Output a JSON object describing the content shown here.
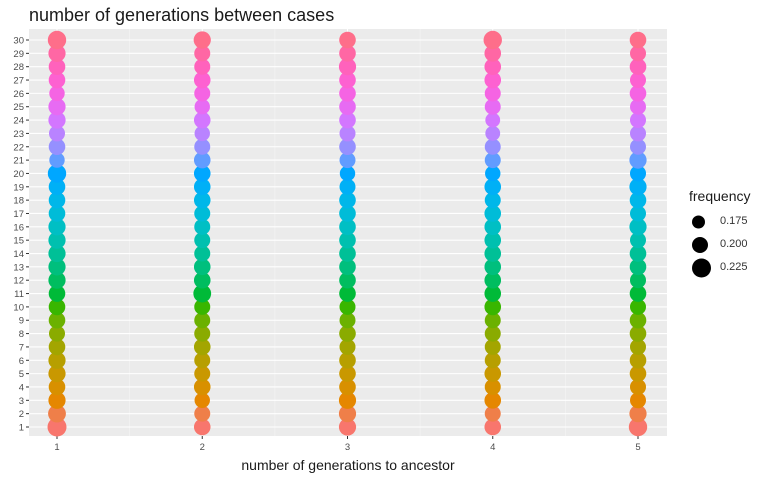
{
  "chart_data": {
    "type": "scatter",
    "title": "number of generations between cases",
    "xlabel": "number of generations to ancestor",
    "ylabel": "",
    "x_categories": [
      "1",
      "2",
      "3",
      "4",
      "5"
    ],
    "y_categories": [
      "1",
      "2",
      "3",
      "4",
      "5",
      "6",
      "7",
      "8",
      "9",
      "10",
      "11",
      "12",
      "13",
      "14",
      "15",
      "16",
      "17",
      "18",
      "19",
      "20",
      "21",
      "22",
      "23",
      "24",
      "25",
      "26",
      "27",
      "28",
      "29",
      "30"
    ],
    "color_by": "y",
    "size_variable": "frequency",
    "legend": {
      "title": "frequency",
      "placement": "right",
      "entries": [
        {
          "label": "0.175",
          "value": 0.175
        },
        {
          "label": "0.200",
          "value": 0.2
        },
        {
          "label": "0.225",
          "value": 0.225
        }
      ]
    },
    "frequency": [
      [
        0.225,
        0.205,
        0.21,
        0.205,
        0.22
      ],
      [
        0.215,
        0.2,
        0.21,
        0.2,
        0.21
      ],
      [
        0.21,
        0.195,
        0.21,
        0.205,
        0.2
      ],
      [
        0.205,
        0.205,
        0.205,
        0.2,
        0.2
      ],
      [
        0.21,
        0.2,
        0.205,
        0.205,
        0.205
      ],
      [
        0.21,
        0.2,
        0.205,
        0.2,
        0.205
      ],
      [
        0.205,
        0.205,
        0.2,
        0.2,
        0.2
      ],
      [
        0.2,
        0.2,
        0.205,
        0.2,
        0.205
      ],
      [
        0.205,
        0.2,
        0.2,
        0.2,
        0.205
      ],
      [
        0.205,
        0.2,
        0.2,
        0.205,
        0.2
      ],
      [
        0.205,
        0.215,
        0.205,
        0.205,
        0.205
      ],
      [
        0.21,
        0.205,
        0.205,
        0.205,
        0.2
      ],
      [
        0.21,
        0.205,
        0.205,
        0.205,
        0.205
      ],
      [
        0.21,
        0.2,
        0.205,
        0.205,
        0.205
      ],
      [
        0.21,
        0.2,
        0.205,
        0.205,
        0.2
      ],
      [
        0.21,
        0.2,
        0.205,
        0.205,
        0.21
      ],
      [
        0.205,
        0.2,
        0.205,
        0.205,
        0.2
      ],
      [
        0.205,
        0.205,
        0.205,
        0.2,
        0.205
      ],
      [
        0.205,
        0.205,
        0.2,
        0.205,
        0.21
      ],
      [
        0.22,
        0.205,
        0.195,
        0.195,
        0.2
      ],
      [
        0.195,
        0.205,
        0.2,
        0.2,
        0.21
      ],
      [
        0.205,
        0.2,
        0.205,
        0.2,
        0.2
      ],
      [
        0.2,
        0.195,
        0.2,
        0.19,
        0.2
      ],
      [
        0.21,
        0.205,
        0.205,
        0.19,
        0.2
      ],
      [
        0.21,
        0.195,
        0.205,
        0.2,
        0.2
      ],
      [
        0.195,
        0.2,
        0.205,
        0.2,
        0.205
      ],
      [
        0.205,
        0.205,
        0.205,
        0.205,
        0.2
      ],
      [
        0.205,
        0.2,
        0.21,
        0.205,
        0.205
      ],
      [
        0.21,
        0.2,
        0.205,
        0.205,
        0.2
      ],
      [
        0.22,
        0.21,
        0.205,
        0.22,
        0.205
      ]
    ],
    "grid": true,
    "background": "#EBEBEB"
  }
}
